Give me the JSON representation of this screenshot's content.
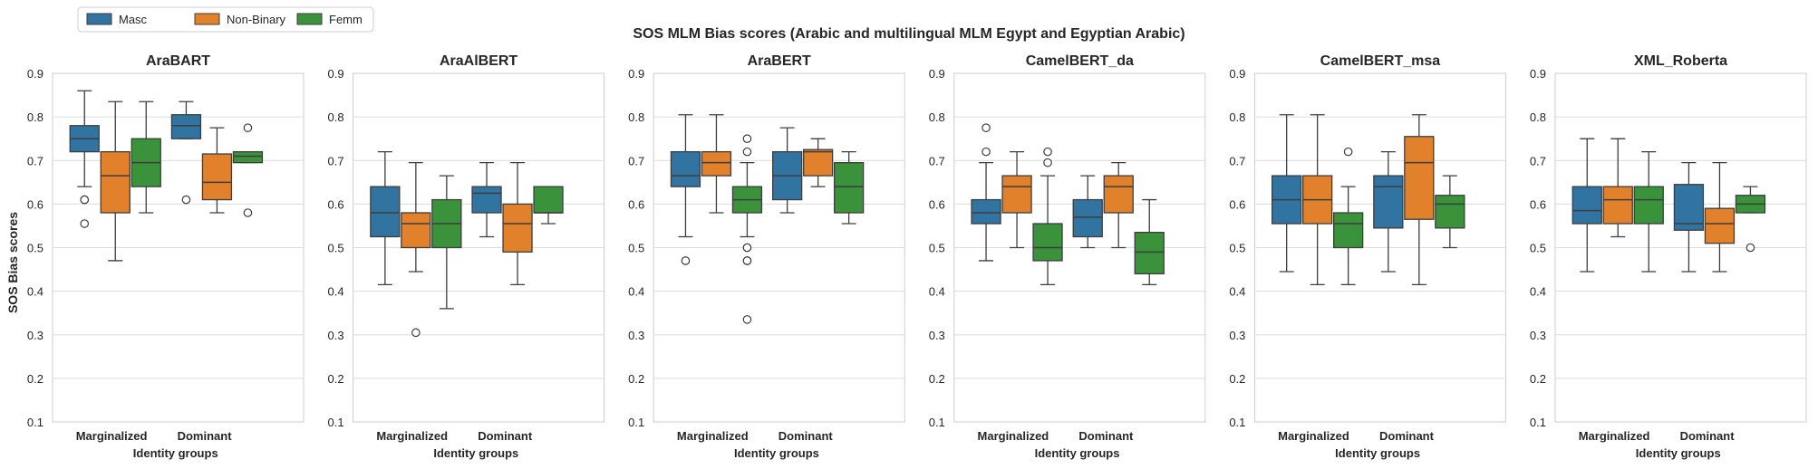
{
  "chart_data": {
    "type": "box",
    "title": "SOS MLM Bias scores (Arabic and multilingual MLM Egypt and Egyptian Arabic)",
    "ylabel": "SOS Bias scores",
    "xlabel": "Identity groups",
    "ylim": [
      0.1,
      0.9
    ],
    "yticks": [
      0.1,
      0.2,
      0.3,
      0.4,
      0.5,
      0.6,
      0.7,
      0.8,
      0.9
    ],
    "grid": "horizontal",
    "legend_position": "top-left",
    "categories": [
      "Marginalized",
      "Dominant"
    ],
    "series": [
      {
        "name": "Masc",
        "color": "#3274a1"
      },
      {
        "name": "Non-Binary",
        "color": "#e1812c"
      },
      {
        "name": "Femm",
        "color": "#3a923a"
      }
    ],
    "panels": [
      {
        "title": "AraBART",
        "groups": [
          [
            {
              "lo": 0.64,
              "q1": 0.72,
              "med": 0.75,
              "q3": 0.78,
              "hi": 0.86,
              "out": [
                0.61,
                0.61,
                0.555
              ]
            },
            {
              "lo": 0.47,
              "q1": 0.58,
              "med": 0.665,
              "q3": 0.72,
              "hi": 0.835,
              "out": []
            },
            {
              "lo": 0.58,
              "q1": 0.64,
              "med": 0.695,
              "q3": 0.75,
              "hi": 0.835,
              "out": []
            }
          ],
          [
            {
              "lo": 0.75,
              "q1": 0.75,
              "med": 0.78,
              "q3": 0.805,
              "hi": 0.835,
              "out": [
                0.61
              ]
            },
            {
              "lo": 0.58,
              "q1": 0.61,
              "med": 0.65,
              "q3": 0.715,
              "hi": 0.775,
              "out": []
            },
            {
              "lo": 0.695,
              "q1": 0.695,
              "med": 0.71,
              "q3": 0.72,
              "hi": 0.72,
              "out": [
                0.775,
                0.58
              ]
            }
          ]
        ]
      },
      {
        "title": "AraAlBERT",
        "groups": [
          [
            {
              "lo": 0.415,
              "q1": 0.525,
              "med": 0.58,
              "q3": 0.64,
              "hi": 0.72,
              "out": []
            },
            {
              "lo": 0.445,
              "q1": 0.5,
              "med": 0.555,
              "q3": 0.58,
              "hi": 0.695,
              "out": [
                0.305
              ]
            },
            {
              "lo": 0.36,
              "q1": 0.5,
              "med": 0.555,
              "q3": 0.61,
              "hi": 0.665,
              "out": []
            }
          ],
          [
            {
              "lo": 0.525,
              "q1": 0.58,
              "med": 0.625,
              "q3": 0.64,
              "hi": 0.695,
              "out": []
            },
            {
              "lo": 0.415,
              "q1": 0.49,
              "med": 0.555,
              "q3": 0.6,
              "hi": 0.695,
              "out": []
            },
            {
              "lo": 0.555,
              "q1": 0.58,
              "med": 0.58,
              "q3": 0.64,
              "hi": 0.64,
              "out": []
            }
          ]
        ]
      },
      {
        "title": "AraBERT",
        "groups": [
          [
            {
              "lo": 0.525,
              "q1": 0.64,
              "med": 0.665,
              "q3": 0.72,
              "hi": 0.805,
              "out": [
                0.47
              ]
            },
            {
              "lo": 0.58,
              "q1": 0.665,
              "med": 0.695,
              "q3": 0.72,
              "hi": 0.805,
              "out": []
            },
            {
              "lo": 0.525,
              "q1": 0.58,
              "med": 0.61,
              "q3": 0.64,
              "hi": 0.695,
              "out": [
                0.75,
                0.72,
                0.5,
                0.5,
                0.47,
                0.47,
                0.335
              ]
            }
          ],
          [
            {
              "lo": 0.58,
              "q1": 0.61,
              "med": 0.665,
              "q3": 0.72,
              "hi": 0.775,
              "out": []
            },
            {
              "lo": 0.64,
              "q1": 0.665,
              "med": 0.72,
              "q3": 0.725,
              "hi": 0.75,
              "out": []
            },
            {
              "lo": 0.555,
              "q1": 0.58,
              "med": 0.64,
              "q3": 0.695,
              "hi": 0.72,
              "out": []
            }
          ]
        ]
      },
      {
        "title": "CamelBERT_da",
        "groups": [
          [
            {
              "lo": 0.47,
              "q1": 0.555,
              "med": 0.58,
              "q3": 0.61,
              "hi": 0.695,
              "out": [
                0.775,
                0.72
              ]
            },
            {
              "lo": 0.5,
              "q1": 0.58,
              "med": 0.64,
              "q3": 0.665,
              "hi": 0.72,
              "out": []
            },
            {
              "lo": 0.415,
              "q1": 0.47,
              "med": 0.5,
              "q3": 0.555,
              "hi": 0.665,
              "out": [
                0.72,
                0.695
              ]
            }
          ],
          [
            {
              "lo": 0.5,
              "q1": 0.525,
              "med": 0.57,
              "q3": 0.61,
              "hi": 0.665,
              "out": []
            },
            {
              "lo": 0.5,
              "q1": 0.58,
              "med": 0.64,
              "q3": 0.665,
              "hi": 0.695,
              "out": []
            },
            {
              "lo": 0.415,
              "q1": 0.44,
              "med": 0.49,
              "q3": 0.535,
              "hi": 0.61,
              "out": []
            }
          ]
        ]
      },
      {
        "title": "CamelBERT_msa",
        "groups": [
          [
            {
              "lo": 0.445,
              "q1": 0.555,
              "med": 0.61,
              "q3": 0.665,
              "hi": 0.805,
              "out": []
            },
            {
              "lo": 0.415,
              "q1": 0.555,
              "med": 0.61,
              "q3": 0.665,
              "hi": 0.805,
              "out": []
            },
            {
              "lo": 0.415,
              "q1": 0.5,
              "med": 0.555,
              "q3": 0.58,
              "hi": 0.64,
              "out": [
                0.72
              ]
            }
          ],
          [
            {
              "lo": 0.445,
              "q1": 0.545,
              "med": 0.64,
              "q3": 0.665,
              "hi": 0.72,
              "out": []
            },
            {
              "lo": 0.415,
              "q1": 0.565,
              "med": 0.695,
              "q3": 0.755,
              "hi": 0.805,
              "out": []
            },
            {
              "lo": 0.5,
              "q1": 0.545,
              "med": 0.6,
              "q3": 0.62,
              "hi": 0.665,
              "out": []
            }
          ]
        ]
      },
      {
        "title": "XML_Roberta",
        "groups": [
          [
            {
              "lo": 0.445,
              "q1": 0.555,
              "med": 0.585,
              "q3": 0.64,
              "hi": 0.75,
              "out": []
            },
            {
              "lo": 0.525,
              "q1": 0.555,
              "med": 0.61,
              "q3": 0.64,
              "hi": 0.75,
              "out": []
            },
            {
              "lo": 0.445,
              "q1": 0.555,
              "med": 0.61,
              "q3": 0.64,
              "hi": 0.72,
              "out": []
            }
          ],
          [
            {
              "lo": 0.445,
              "q1": 0.54,
              "med": 0.555,
              "q3": 0.645,
              "hi": 0.695,
              "out": []
            },
            {
              "lo": 0.445,
              "q1": 0.51,
              "med": 0.555,
              "q3": 0.59,
              "hi": 0.695,
              "out": []
            },
            {
              "lo": 0.58,
              "q1": 0.58,
              "med": 0.6,
              "q3": 0.62,
              "hi": 0.64,
              "out": [
                0.5
              ]
            }
          ]
        ]
      }
    ]
  }
}
